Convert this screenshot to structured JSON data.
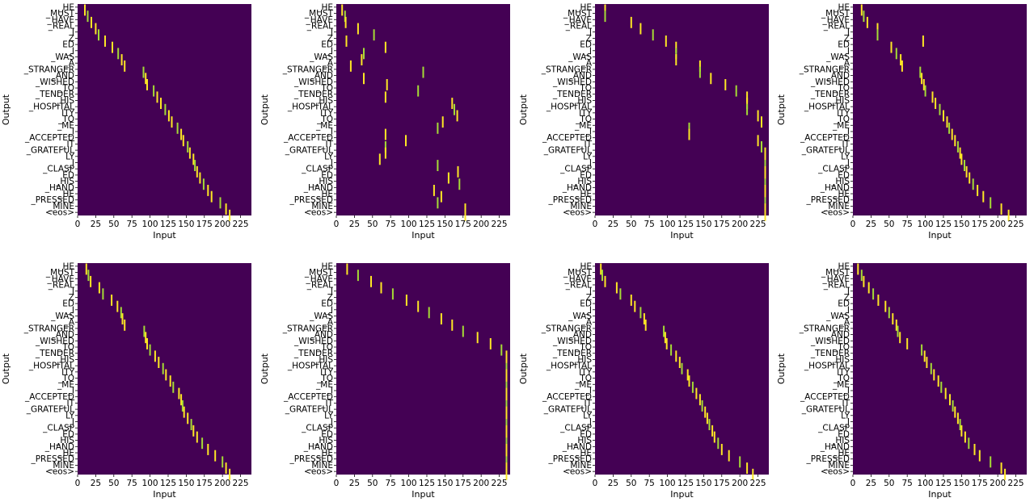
{
  "figure": {
    "layout": "2 rows x 4 columns",
    "background": "#440154",
    "attention_color": "#fde725",
    "mid_color": "#a5db36"
  },
  "chart_data": [
    {
      "type": "heatmap",
      "xlabel": "Input",
      "ylabel": "Output",
      "xlim": [
        0,
        240
      ],
      "x_ticks": [
        0,
        25,
        50,
        75,
        100,
        125,
        150,
        175,
        200,
        225
      ],
      "y_tick_labels": [
        "_HE",
        "_MUST",
        "_HAVE",
        "_REAL",
        "I",
        "Z",
        "ED",
        "_I",
        "_WAS",
        "_A",
        "_STRANGER",
        "_AND",
        "_WISHED",
        "_TO",
        "_TENDER",
        "_HIS",
        "_HOSPITAL",
        "ITY",
        "_TO",
        "_ME",
        "_I",
        "_ACCEPTED",
        "_IT",
        "_GRATEFUL",
        "LY",
        "_I",
        "_CLASP",
        "ED",
        "_HIS",
        "_HAND",
        "_HE",
        "_PRESSED",
        "_MINE",
        "<eos>"
      ],
      "argmax_input": [
        10,
        14,
        19,
        25,
        29,
        38,
        48,
        56,
        61,
        65,
        91,
        94,
        96,
        105,
        110,
        115,
        121,
        126,
        130,
        138,
        143,
        146,
        152,
        155,
        160,
        162,
        165,
        169,
        174,
        180,
        185,
        197,
        205,
        210
      ]
    },
    {
      "type": "heatmap",
      "xlabel": "Input",
      "ylabel": "Output",
      "xlim": [
        0,
        240
      ],
      "x_ticks": [
        0,
        25,
        50,
        75,
        100,
        125,
        150,
        175,
        200,
        225
      ],
      "y_tick_labels": [
        "_HE",
        "_MUST",
        "_HAVE",
        "_REAL",
        "I",
        "Z",
        "ED",
        "_I",
        "_WAS",
        "_A",
        "_STRANGER",
        "_AND",
        "_WISHED",
        "_TO",
        "_TENDER",
        "_HIS",
        "_HOSPITAL",
        "ITY",
        "_TO",
        "_ME",
        "_I",
        "_ACCEPTED",
        "_IT",
        "_GRATEFUL",
        "LY",
        "_I",
        "_CLASP",
        "ED",
        "_HIS",
        "_HAND",
        "_HE",
        "_PRESSED",
        "_MINE",
        "<eos>"
      ],
      "argmax_input": [
        8,
        12,
        13,
        30,
        52,
        14,
        68,
        38,
        35,
        20,
        120,
        38,
        70,
        113,
        68,
        160,
        163,
        167,
        147,
        140,
        68,
        96,
        68,
        68,
        60,
        140,
        168,
        155,
        170,
        135,
        145,
        140,
        178,
        178
      ]
    },
    {
      "type": "heatmap",
      "xlabel": "Input",
      "ylabel": "Output",
      "xlim": [
        0,
        240
      ],
      "x_ticks": [
        0,
        25,
        50,
        75,
        100,
        125,
        150,
        175,
        200,
        225
      ],
      "y_tick_labels": [
        "_HE",
        "_MUST",
        "_HAVE",
        "_REAL",
        "I",
        "Z",
        "ED",
        "_I",
        "_WAS",
        "_A",
        "_STRANGER",
        "_AND",
        "_WISHED",
        "_TO",
        "_TENDER",
        "_HIS",
        "_HOSPITAL",
        "ITY",
        "_TO",
        "_ME",
        "_I",
        "_ACCEPTED",
        "_IT",
        "_GRATEFUL",
        "LY",
        "_I",
        "_CLASP",
        "ED",
        "_HIS",
        "_HAND",
        "_HE",
        "_PRESSED",
        "_MINE",
        "<eos>"
      ],
      "argmax_input": [
        14,
        14,
        50,
        63,
        80,
        98,
        112,
        112,
        112,
        145,
        145,
        160,
        180,
        195,
        210,
        210,
        210,
        225,
        230,
        130,
        130,
        225,
        230,
        235,
        235,
        235,
        235,
        235,
        235,
        235,
        235,
        235,
        235,
        235
      ]
    },
    {
      "type": "heatmap",
      "xlabel": "Input",
      "ylabel": "Output",
      "xlim": [
        0,
        240
      ],
      "x_ticks": [
        0,
        25,
        50,
        75,
        100,
        125,
        150,
        175,
        200,
        225
      ],
      "y_tick_labels": [
        "_HE",
        "_MUST",
        "_HAVE",
        "_REAL",
        "I",
        "Z",
        "ED",
        "_I",
        "_WAS",
        "_A",
        "_STRANGER",
        "_AND",
        "_WISHED",
        "_TO",
        "_TENDER",
        "_HIS",
        "_HOSPITAL",
        "ITY",
        "_TO",
        "_ME",
        "_I",
        "_ACCEPTED",
        "_IT",
        "_GRATEFUL",
        "LY",
        "_I",
        "_CLASP",
        "ED",
        "_HIS",
        "_HAND",
        "_HE",
        "_PRESSED",
        "_MINE",
        "<eos>"
      ],
      "argmax_input": [
        12,
        15,
        20,
        34,
        34,
        97,
        53,
        60,
        66,
        68,
        93,
        95,
        98,
        100,
        110,
        114,
        120,
        125,
        130,
        133,
        137,
        141,
        145,
        148,
        150,
        154,
        157,
        161,
        166,
        172,
        180,
        190,
        205,
        215
      ]
    },
    {
      "type": "heatmap",
      "xlabel": "Input",
      "ylabel": "Output",
      "xlim": [
        0,
        240
      ],
      "x_ticks": [
        0,
        25,
        50,
        75,
        100,
        125,
        150,
        175,
        200,
        225
      ],
      "y_tick_labels": [
        "_HE",
        "_MUST",
        "_HAVE",
        "_REAL",
        "I",
        "Z",
        "ED",
        "_I",
        "_WAS",
        "_A",
        "_STRANGER",
        "_AND",
        "_WISHED",
        "_TO",
        "_TENDER",
        "_HIS",
        "_HOSPITAL",
        "ITY",
        "_TO",
        "_ME",
        "_I",
        "_ACCEPTED",
        "_IT",
        "_GRATEFUL",
        "LY",
        "_I",
        "_CLASP",
        "ED",
        "_HIS",
        "_HAND",
        "_HE",
        "_PRESSED",
        "_MINE",
        "<eos>"
      ],
      "argmax_input": [
        12,
        15,
        18,
        30,
        35,
        47,
        55,
        60,
        62,
        65,
        92,
        94,
        96,
        100,
        107,
        112,
        118,
        122,
        128,
        132,
        140,
        143,
        145,
        147,
        152,
        157,
        160,
        165,
        172,
        180,
        190,
        200,
        205,
        210
      ]
    },
    {
      "type": "heatmap",
      "xlabel": "Input",
      "ylabel": "Output",
      "xlim": [
        0,
        240
      ],
      "x_ticks": [
        0,
        25,
        50,
        75,
        100,
        125,
        150,
        175,
        200,
        225
      ],
      "y_tick_labels": [
        "_HE",
        "_MUST",
        "_HAVE",
        "_REAL",
        "I",
        "Z",
        "ED",
        "_I",
        "_WAS",
        "_A",
        "_STRANGER",
        "_AND",
        "_WISHED",
        "_TO",
        "_TENDER",
        "_HIS",
        "_HOSPITAL",
        "ITY",
        "_TO",
        "_ME",
        "_I",
        "_ACCEPTED",
        "_IT",
        "_GRATEFUL",
        "LY",
        "_I",
        "_CLASP",
        "ED",
        "_HIS",
        "_HAND",
        "_HE",
        "_PRESSED",
        "_MINE",
        "<eos>"
      ],
      "argmax_input": [
        15,
        30,
        48,
        62,
        78,
        97,
        113,
        128,
        145,
        160,
        175,
        195,
        213,
        228,
        235,
        235,
        235,
        235,
        235,
        235,
        235,
        235,
        235,
        235,
        235,
        235,
        235,
        235,
        235,
        235,
        235,
        235,
        235,
        235
      ]
    },
    {
      "type": "heatmap",
      "xlabel": "Input",
      "ylabel": "Output",
      "xlim": [
        0,
        240
      ],
      "x_ticks": [
        0,
        25,
        50,
        75,
        100,
        125,
        150,
        175,
        200,
        225
      ],
      "y_tick_labels": [
        "_HE",
        "_MUST",
        "_HAVE",
        "_REAL",
        "I",
        "Z",
        "ED",
        "_I",
        "_WAS",
        "_A",
        "_STRANGER",
        "_AND",
        "_WISHED",
        "_TO",
        "_TENDER",
        "_HIS",
        "_HOSPITAL",
        "ITY",
        "_TO",
        "_ME",
        "_I",
        "_ACCEPTED",
        "_IT",
        "_GRATEFUL",
        "LY",
        "_I",
        "_CLASP",
        "ED",
        "_HIS",
        "_HAND",
        "_HE",
        "_PRESSED",
        "_MINE",
        "<eos>"
      ],
      "argmax_input": [
        8,
        10,
        14,
        30,
        35,
        50,
        55,
        63,
        68,
        70,
        95,
        97,
        99,
        105,
        112,
        117,
        120,
        128,
        130,
        135,
        140,
        145,
        148,
        152,
        155,
        158,
        162,
        165,
        170,
        175,
        185,
        200,
        210,
        218
      ]
    },
    {
      "type": "heatmap",
      "xlabel": "Input",
      "ylabel": "Output",
      "xlim": [
        0,
        240
      ],
      "x_ticks": [
        0,
        25,
        50,
        75,
        100,
        125,
        150,
        175,
        200,
        225
      ],
      "y_tick_labels": [
        "_HE",
        "_MUST",
        "_HAVE",
        "_REAL",
        "I",
        "Z",
        "ED",
        "_I",
        "_WAS",
        "_A",
        "_STRANGER",
        "_AND",
        "_WISHED",
        "_TO",
        "_TENDER",
        "_HIS",
        "_HOSPITAL",
        "ITY",
        "_TO",
        "_ME",
        "_I",
        "_ACCEPTED",
        "_IT",
        "_GRATEFUL",
        "LY",
        "_I",
        "_CLASP",
        "ED",
        "_HIS",
        "_HAND",
        "_HE",
        "_PRESSED",
        "_MINE",
        "<eos>"
      ],
      "argmax_input": [
        7,
        12,
        15,
        22,
        28,
        35,
        45,
        50,
        55,
        60,
        62,
        65,
        75,
        95,
        99,
        102,
        108,
        112,
        118,
        122,
        128,
        134,
        138,
        141,
        145,
        148,
        150,
        155,
        160,
        168,
        175,
        190,
        205,
        210
      ]
    }
  ]
}
